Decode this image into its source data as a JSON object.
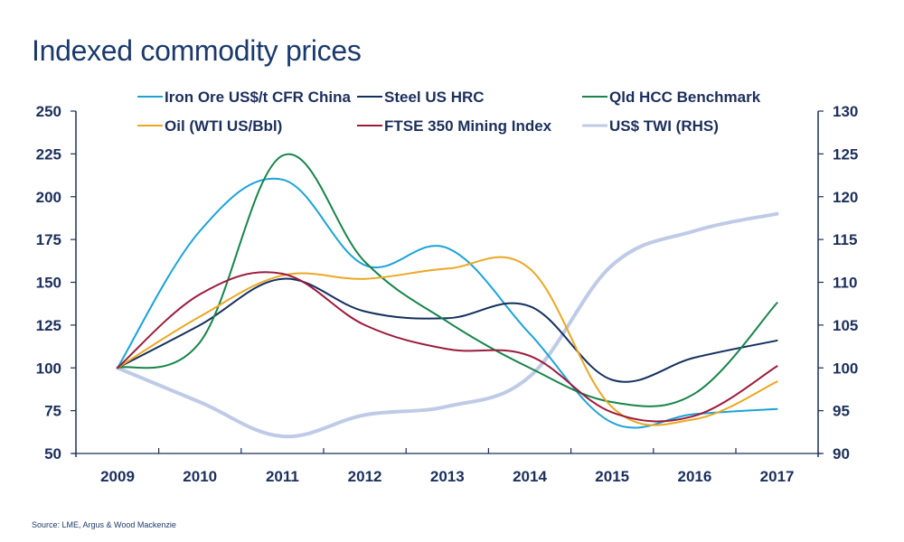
{
  "title": "Indexed commodity prices",
  "source": "Source: LME, Argus & Wood Mackenzie",
  "chart_data": {
    "type": "line",
    "title": "Indexed commodity prices",
    "xlabel": "",
    "ylabel": "",
    "y2label": "",
    "x": [
      "2009",
      "2010",
      "2011",
      "2012",
      "2013",
      "2014",
      "2015",
      "2016",
      "2017"
    ],
    "ylim": [
      50,
      250
    ],
    "yticks": [
      50,
      75,
      100,
      125,
      150,
      175,
      200,
      225,
      250
    ],
    "y2lim": [
      90,
      130
    ],
    "y2ticks": [
      90,
      95,
      100,
      105,
      110,
      115,
      120,
      125,
      130
    ],
    "grid": false,
    "legend_position": "top",
    "series": [
      {
        "name": "Iron Ore US$/t CFR China",
        "color": "#1ba3d8",
        "axis": "left",
        "values": [
          100,
          180,
          210,
          160,
          170,
          120,
          68,
          73,
          76
        ]
      },
      {
        "name": "Steel US HRC",
        "color": "#14305f",
        "axis": "left",
        "values": [
          100,
          125,
          152,
          133,
          129,
          136,
          93,
          106,
          116
        ]
      },
      {
        "name": "Qld HCC Benchmark",
        "color": "#17844a",
        "axis": "left",
        "values": [
          100,
          115,
          224,
          162,
          127,
          100,
          80,
          85,
          138
        ]
      },
      {
        "name": "Oil (WTI US/Bbl)",
        "color": "#eaa823",
        "axis": "left",
        "values": [
          100,
          130,
          154,
          152,
          158,
          158,
          77,
          70,
          92
        ]
      },
      {
        "name": "FTSE 350 Mining Index",
        "color": "#9b1b3b",
        "axis": "left",
        "values": [
          100,
          143,
          155,
          125,
          111,
          107,
          74,
          72,
          101
        ]
      },
      {
        "name": "US$ TWI (RHS)",
        "color": "#bfcbe6",
        "axis": "right",
        "values": [
          100,
          96,
          92,
          94.5,
          95.5,
          99,
          112,
          116,
          118
        ]
      }
    ]
  }
}
